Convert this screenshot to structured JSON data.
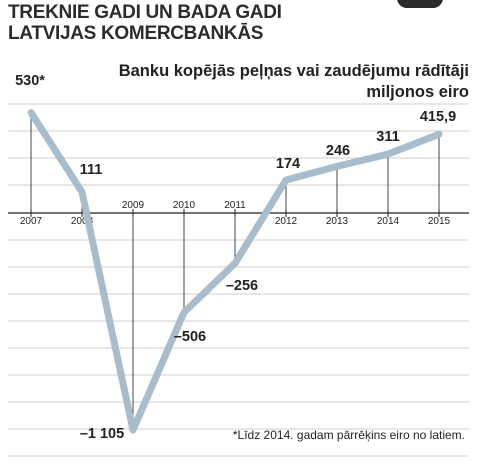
{
  "headline": {
    "line1": "TREKNIE GADI UN BADA GADI",
    "line2": "LATVIJAS KOMERCBANKĀS"
  },
  "chart_data": {
    "type": "line",
    "title": "Banku kopējās peļņas vai zaudējumu rādītāji",
    "subtitle": "miljonos eiro",
    "x": [
      "2007",
      "2008",
      "2009",
      "2010",
      "2011",
      "2012",
      "2013",
      "2014",
      "2015"
    ],
    "values": [
      530,
      111,
      -1105,
      -506,
      -256,
      174,
      246,
      311,
      415.9
    ],
    "data_labels": [
      "530*",
      "111",
      "–1 105",
      "–506",
      "–256",
      "174",
      "246",
      "311",
      "415,9"
    ],
    "line_color": "#a9bccb",
    "grid": true,
    "footnote": "*Līdz 2014. gadam pārrēķins eiro no latiem."
  }
}
